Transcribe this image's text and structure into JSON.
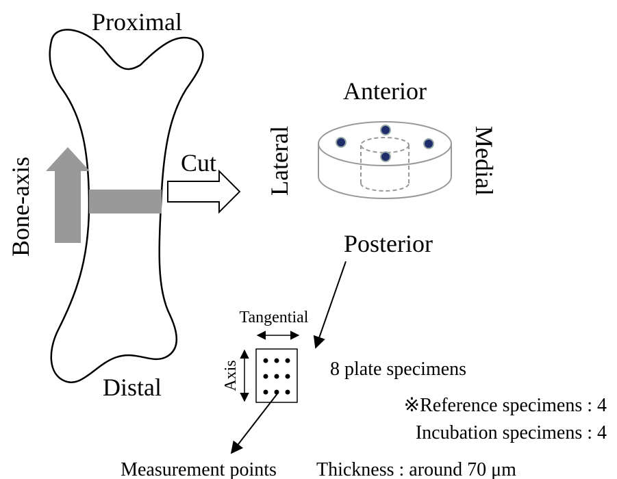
{
  "labels": {
    "proximal": "Proximal",
    "distal": "Distal",
    "bone_axis": "Bone-axis",
    "cut": "Cut",
    "anterior": "Anterior",
    "posterior": "Posterior",
    "lateral": "Lateral",
    "medial": "Medial",
    "tangential": "Tangential",
    "axis": "Axis",
    "plates": "8 plate specimens",
    "reference": "※Reference specimens : 4",
    "incubation": "Incubation specimens : 4",
    "measurement": "Measurement points",
    "thickness": "Thickness : around 70 μm"
  }
}
